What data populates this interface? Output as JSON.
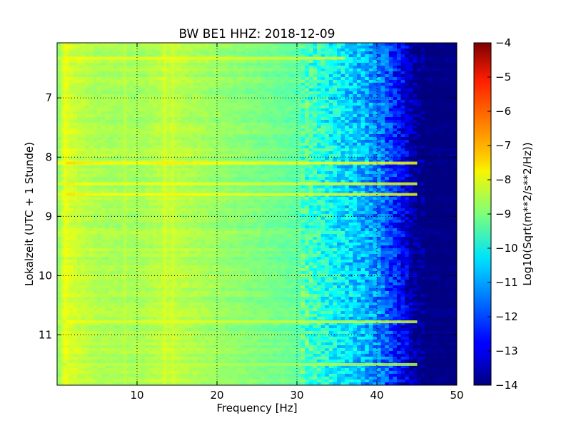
{
  "chart_data": {
    "type": "heatmap",
    "title": "BW BE1 HHZ: 2018-12-09",
    "xlabel": "Frequency [Hz]",
    "ylabel": "Lokalzeit (UTC + 1 Stunde)",
    "xlim": [
      0,
      50
    ],
    "ylim": [
      11.85,
      6.07
    ],
    "y_axis_inverted": true,
    "x_ticks": [
      10,
      20,
      30,
      40,
      50
    ],
    "y_ticks": [
      7,
      8,
      9,
      10,
      11
    ],
    "grid": true,
    "colormap": "jet",
    "colorbar": {
      "label": "Log10(Sqrt(m**2/s**2/Hz))",
      "min": -14,
      "max": -4,
      "ticks": [
        -4,
        -5,
        -6,
        -7,
        -8,
        -9,
        -10,
        -11,
        -12,
        -13,
        -14
      ]
    },
    "spectrum_profile": {
      "frequency_hz": [
        0,
        1,
        2,
        5,
        10,
        14,
        20,
        25,
        30,
        33,
        36,
        38,
        40,
        42,
        44,
        45,
        46,
        50
      ],
      "level": [
        -9.0,
        -8.0,
        -8.25,
        -8.55,
        -8.65,
        -8.35,
        -8.75,
        -9.0,
        -9.3,
        -9.9,
        -10.5,
        -10.9,
        -11.4,
        -12.2,
        -13.3,
        -14,
        -14,
        -14
      ]
    },
    "horizontal_bands": [
      {
        "time": 6.33,
        "level": -8.2,
        "max_frequency_hz": 36
      },
      {
        "time": 8.1,
        "level": -7.9,
        "max_frequency_hz": 45
      },
      {
        "time": 8.45,
        "level": -8.1,
        "max_frequency_hz": 45
      },
      {
        "time": 8.63,
        "level": -8.0,
        "max_frequency_hz": 45
      },
      {
        "time": 10.78,
        "level": -8.3,
        "max_frequency_hz": 45
      },
      {
        "time": 11.5,
        "level": -8.6,
        "max_frequency_hz": 45
      }
    ],
    "vertical_bands": [
      {
        "frequency_hz": 1.0,
        "level": -7.8
      },
      {
        "frequency_hz": 8.5,
        "level": -8.2
      },
      {
        "frequency_hz": 13.5,
        "level": -8.0
      },
      {
        "frequency_hz": 14.5,
        "level": -8.1
      }
    ]
  }
}
